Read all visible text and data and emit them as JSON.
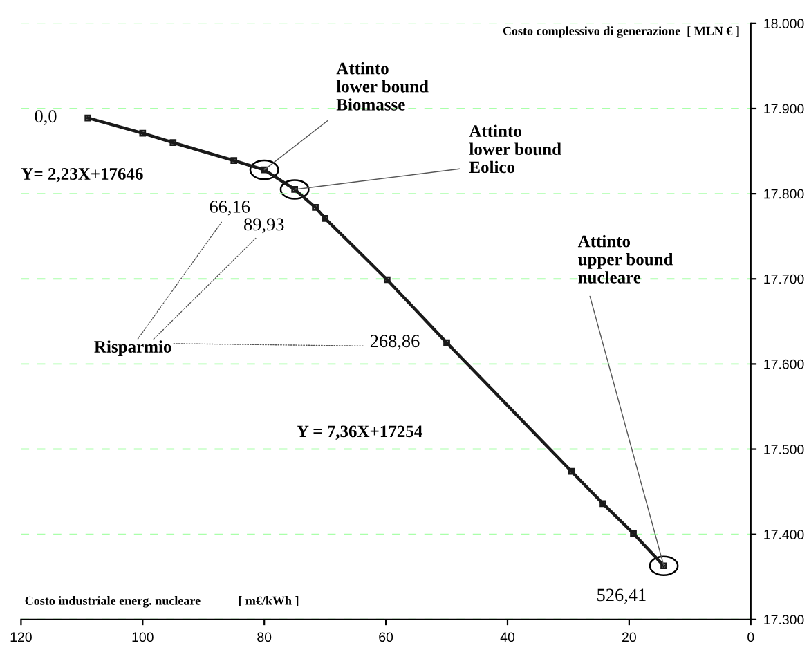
{
  "chart_data": {
    "type": "line",
    "ylabel": "Costo complessivo di generazione  [ MLN € ]",
    "xlabel": "Costo industriale energ. nucleare            [ m€/kWh ]",
    "x": [
      109,
      100,
      95,
      85,
      80,
      75,
      71.6,
      70,
      59.8,
      50,
      29.5,
      24.3,
      19.3,
      14.3
    ],
    "series": [
      {
        "color": "#1a1a1a",
        "values": [
          17889,
          17871,
          17860,
          17839,
          17828,
          17805,
          17784,
          17771,
          17699,
          17625,
          17474,
          17436,
          17401,
          17363
        ]
      }
    ],
    "xlim": [
      120,
      0
    ],
    "xticks": [
      120,
      100,
      80,
      60,
      40,
      20,
      0
    ],
    "ylim": [
      17300,
      18000
    ],
    "yticks": [
      {
        "value": 17300,
        "label": "17.300"
      },
      {
        "value": 17400,
        "label": "17.400"
      },
      {
        "value": 17500,
        "label": "17.500"
      },
      {
        "value": 17600,
        "label": "17.600"
      },
      {
        "value": 17700,
        "label": "17.700"
      },
      {
        "value": 17800,
        "label": "17.800"
      },
      {
        "value": 17900,
        "label": "17.900"
      },
      {
        "value": 18000,
        "label": "18.000"
      }
    ],
    "grid": "y",
    "marker": "square",
    "line_style": "solid",
    "legend": false,
    "annotations": [
      {
        "text": "0,0",
        "x": 109,
        "y": 17889
      },
      {
        "text": "66,16",
        "x": 80,
        "y": 17828
      },
      {
        "text": "89,93",
        "x": 75,
        "y": 17805
      },
      {
        "text": "268,86",
        "x": 50,
        "y": 17625
      },
      {
        "text": "526,41",
        "x": 14.3,
        "y": 17363
      },
      {
        "text": "Attinto\nlower bound\nBiomasse",
        "x": 80,
        "y": 17828
      },
      {
        "text": "Attinto\nlower bound\nEolico",
        "x": 75,
        "y": 17805
      },
      {
        "text": "Attinto\nupper bound\nnucleare",
        "x": 14.3,
        "y": 17363
      },
      "Y= 2,23X+17646",
      "Y = 7,36X+17254",
      "Risparmio"
    ]
  }
}
